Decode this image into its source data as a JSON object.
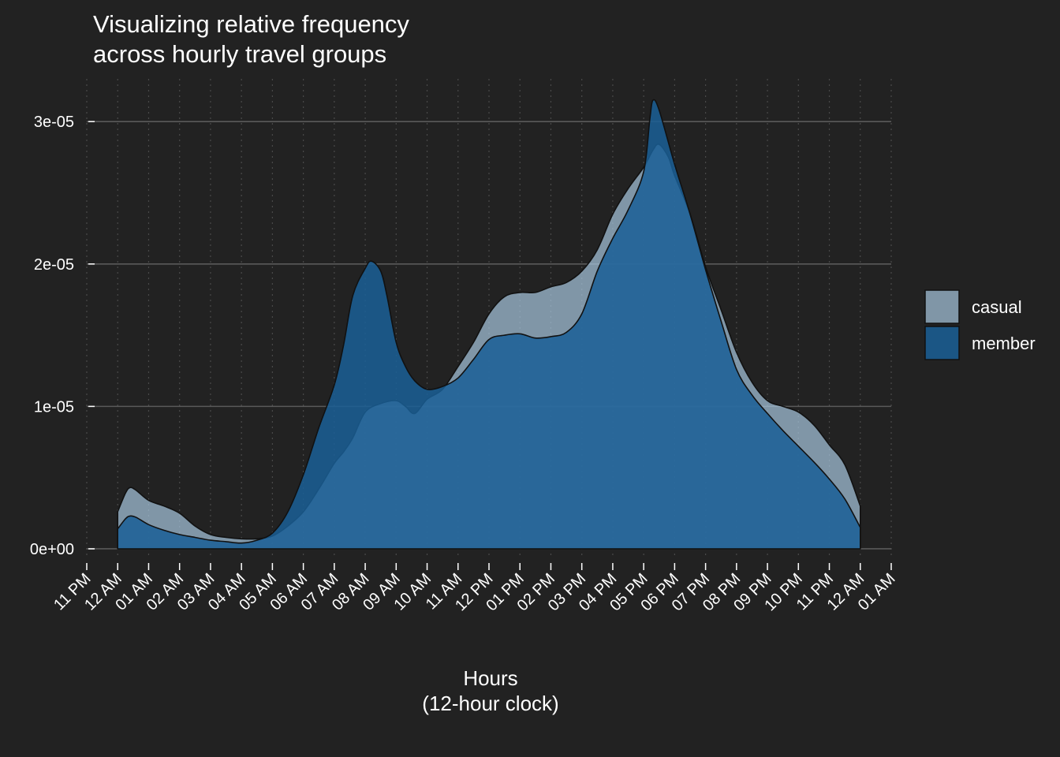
{
  "chart_data": {
    "type": "area",
    "title_lines": [
      "Visualizing relative frequency",
      "across hourly travel groups"
    ],
    "xlabel_lines": [
      "Hours",
      "(12-hour clock)"
    ],
    "ylabel": "",
    "x_unit": "hour of day",
    "x_range": [
      -1,
      25
    ],
    "x_ticks": [
      {
        "x": -1,
        "label": "11 PM"
      },
      {
        "x": 0,
        "label": "12 AM"
      },
      {
        "x": 1,
        "label": "01 AM"
      },
      {
        "x": 2,
        "label": "02 AM"
      },
      {
        "x": 3,
        "label": "03 AM"
      },
      {
        "x": 4,
        "label": "04 AM"
      },
      {
        "x": 5,
        "label": "05 AM"
      },
      {
        "x": 6,
        "label": "06 AM"
      },
      {
        "x": 7,
        "label": "07 AM"
      },
      {
        "x": 8,
        "label": "08 AM"
      },
      {
        "x": 9,
        "label": "09 AM"
      },
      {
        "x": 10,
        "label": "10 AM"
      },
      {
        "x": 11,
        "label": "11 AM"
      },
      {
        "x": 12,
        "label": "12 PM"
      },
      {
        "x": 13,
        "label": "01 PM"
      },
      {
        "x": 14,
        "label": "02 PM"
      },
      {
        "x": 15,
        "label": "03 PM"
      },
      {
        "x": 16,
        "label": "04 PM"
      },
      {
        "x": 17,
        "label": "05 PM"
      },
      {
        "x": 18,
        "label": "06 PM"
      },
      {
        "x": 19,
        "label": "07 PM"
      },
      {
        "x": 20,
        "label": "08 PM"
      },
      {
        "x": 21,
        "label": "09 PM"
      },
      {
        "x": 22,
        "label": "10 PM"
      },
      {
        "x": 23,
        "label": "11 PM"
      },
      {
        "x": 24,
        "label": "12 AM"
      },
      {
        "x": 25,
        "label": "01 AM"
      }
    ],
    "y_range": [
      -5e-07,
      3.3e-05
    ],
    "y_ticks": [
      {
        "y": 0,
        "label": "0e+00"
      },
      {
        "y": 1e-05,
        "label": "1e-05"
      },
      {
        "y": 2e-05,
        "label": "2e-05"
      },
      {
        "y": 3e-05,
        "label": "3e-05"
      }
    ],
    "grid": true,
    "legend_position": "right",
    "series": [
      {
        "name": "casual",
        "color": "#a8c7e0",
        "opacity": 0.7,
        "x": [
          0,
          0.25,
          0.4,
          0.6,
          1,
          1.5,
          2,
          2.5,
          3,
          3.5,
          4,
          4.5,
          5,
          5.5,
          6,
          6.5,
          7,
          7.3,
          7.6,
          8,
          8.5,
          9,
          9.3,
          9.6,
          10,
          10.5,
          11,
          11.5,
          12,
          12.5,
          13,
          13.5,
          14,
          14.5,
          15,
          15.5,
          16,
          16.5,
          17,
          17.3,
          17.5,
          17.8,
          18,
          18.5,
          19,
          19.5,
          20,
          20.5,
          21,
          21.5,
          22,
          22.5,
          23,
          23.5,
          24
        ],
        "y": [
          2.6e-06,
          3.9e-06,
          4.3e-06,
          4.1e-06,
          3.4e-06,
          3e-06,
          2.5e-06,
          1.6e-06,
          1e-06,
          8e-07,
          7e-07,
          7e-07,
          9e-07,
          1.6e-06,
          2.6e-06,
          4.2e-06,
          6e-06,
          6.8e-06,
          7.8e-06,
          9.6e-06,
          1.02e-05,
          1.04e-05,
          1e-05,
          9.5e-06,
          1.05e-05,
          1.12e-05,
          1.28e-05,
          1.45e-05,
          1.65e-05,
          1.77e-05,
          1.8e-05,
          1.8e-05,
          1.84e-05,
          1.87e-05,
          1.95e-05,
          2.1e-05,
          2.35e-05,
          2.53e-05,
          2.68e-05,
          2.8e-05,
          2.84e-05,
          2.75e-05,
          2.62e-05,
          2.35e-05,
          1.98e-05,
          1.68e-05,
          1.38e-05,
          1.17e-05,
          1.04e-05,
          1e-05,
          9.6e-06,
          8.7e-06,
          7.3e-06,
          5.9e-06,
          3e-06
        ]
      },
      {
        "name": "member",
        "color": "#1a5f96",
        "opacity": 0.85,
        "x": [
          0,
          0.25,
          0.4,
          0.6,
          1,
          1.5,
          2,
          2.5,
          3,
          3.5,
          4,
          4.5,
          5,
          5.5,
          6,
          6.5,
          7,
          7.3,
          7.6,
          8,
          8.2,
          8.5,
          8.7,
          9,
          9.3,
          9.6,
          10,
          10.5,
          11,
          11.5,
          12,
          12.5,
          13,
          13.5,
          14,
          14.5,
          15,
          15.5,
          16,
          16.5,
          17,
          17.2,
          17.3,
          17.5,
          18,
          18.5,
          19,
          19.5,
          20,
          20.5,
          21,
          21.5,
          22,
          22.5,
          23,
          23.5,
          24
        ],
        "y": [
          1.4e-06,
          2.1e-06,
          2.3e-06,
          2.2e-06,
          1.7e-06,
          1.3e-06,
          1e-06,
          8e-07,
          6e-07,
          5e-07,
          4e-07,
          6e-07,
          1.1e-06,
          2.6e-06,
          5.2e-06,
          8.5e-06,
          1.15e-05,
          1.43e-05,
          1.78e-05,
          1.97e-05,
          2.02e-05,
          1.95e-05,
          1.78e-05,
          1.45e-05,
          1.28e-05,
          1.18e-05,
          1.12e-05,
          1.14e-05,
          1.2e-05,
          1.33e-05,
          1.47e-05,
          1.5e-05,
          1.51e-05,
          1.48e-05,
          1.49e-05,
          1.52e-05,
          1.65e-05,
          1.95e-05,
          2.18e-05,
          2.38e-05,
          2.65e-05,
          3.02e-05,
          3.15e-05,
          3.08e-05,
          2.7e-05,
          2.35e-05,
          1.96e-05,
          1.6e-05,
          1.26e-05,
          1.08e-05,
          9.5e-06,
          8.3e-06,
          7.2e-06,
          6.1e-06,
          4.9e-06,
          3.5e-06,
          1.5e-06
        ]
      }
    ]
  }
}
